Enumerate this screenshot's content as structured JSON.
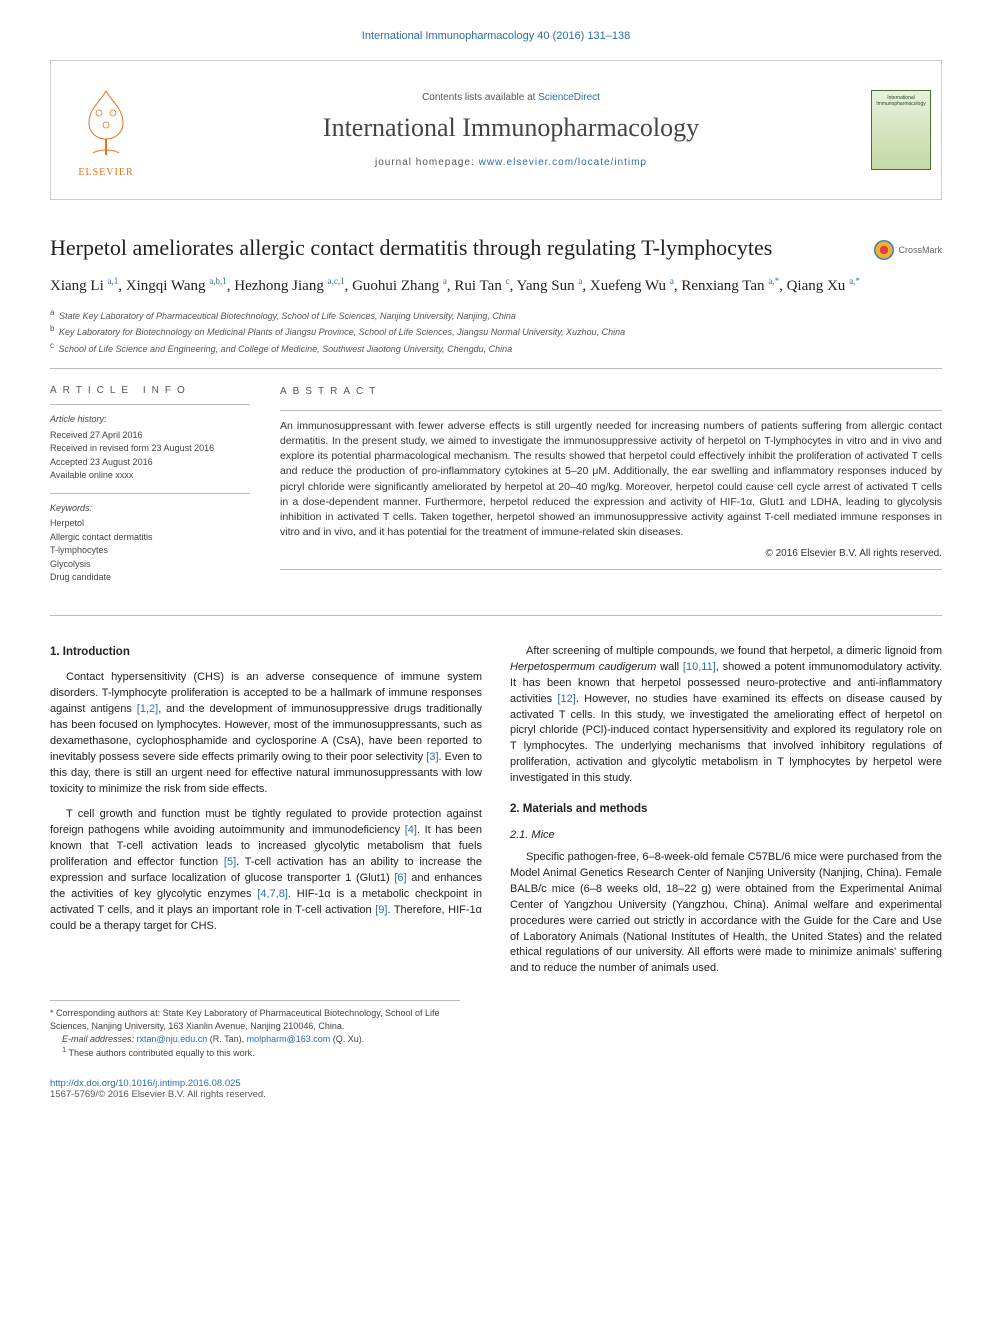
{
  "journal_ref_link": "International Immunopharmacology 40 (2016) 131–138",
  "header": {
    "contents_prefix": "Contents lists available at ",
    "contents_link": "ScienceDirect",
    "journal_name": "International Immunopharmacology",
    "homepage_label": "journal homepage: ",
    "homepage_url": "www.elsevier.com/locate/intimp",
    "publisher_label": "ELSEVIER",
    "thumb_top": "International",
    "thumb_bottom": "Immunopharmacology"
  },
  "crossmark_label": "CrossMark",
  "title": "Herpetol ameliorates allergic contact dermatitis through regulating T-lymphocytes",
  "authors_html": "Xiang Li <sup>a,1</sup>, Xingqi Wang <sup>a,b,1</sup>, Hezhong Jiang <sup>a,c,1</sup>, Guohui Zhang <sup>a</sup>, Rui Tan <sup>c</sup>, Yang Sun <sup>a</sup>, Xuefeng Wu <sup>a</sup>, Renxiang Tan <sup>a,<span class=\"ast\">*</span></sup>, Qiang Xu <sup>a,<span class=\"ast\">*</span></sup>",
  "affiliations": [
    {
      "sup": "a",
      "text": "State Key Laboratory of Pharmaceutical Biotechnology, School of Life Sciences, Nanjing University, Nanjing, China"
    },
    {
      "sup": "b",
      "text": "Key Laboratory for Biotechnology on Medicinal Plants of Jiangsu Province, School of Life Sciences, Jiangsu Normal University, Xuzhou, China"
    },
    {
      "sup": "c",
      "text": "School of Life Science and Engineering, and College of Medicine, Southwest Jiaotong University, Chengdu, China"
    }
  ],
  "article_info": {
    "heading": "ARTICLE INFO",
    "history_label": "Article history:",
    "history": [
      "Received 27 April 2016",
      "Received in revised form 23 August 2016",
      "Accepted 23 August 2016",
      "Available online xxxx"
    ],
    "keywords_label": "Keywords:",
    "keywords": [
      "Herpetol",
      "Allergic contact dermatitis",
      "T-lymphocytes",
      "Glycolysis",
      "Drug candidate"
    ]
  },
  "abstract": {
    "heading": "ABSTRACT",
    "text": "An immunosuppressant with fewer adverse effects is still urgently needed for increasing numbers of patients suffering from allergic contact dermatitis. In the present study, we aimed to investigate the immunosuppressive activity of herpetol on T-lymphocytes in vitro and in vivo and explore its potential pharmacological mechanism. The results showed that herpetol could effectively inhibit the proliferation of activated T cells and reduce the production of pro-inflammatory cytokines at 5–20 μM. Additionally, the ear swelling and inflammatory responses induced by picryl chloride were significantly ameliorated by herpetol at 20–40 mg/kg. Moreover, herpetol could cause cell cycle arrest of activated T cells in a dose-dependent manner. Furthermore, herpetol reduced the expression and activity of HIF-1α, Glut1 and LDHA, leading to glycolysis inhibition in activated T cells. Taken together, herpetol showed an immunosuppressive activity against T-cell mediated immune responses in vitro and in vivo, and it has potential for the treatment of immune-related skin diseases.",
    "copyright": "© 2016 Elsevier B.V. All rights reserved."
  },
  "sections": {
    "intro_h": "1. Introduction",
    "intro_p1": "Contact hypersensitivity (CHS) is an adverse consequence of immune system disorders. T-lymphocyte proliferation is accepted to be a hallmark of immune responses against antigens <span class=\"cite\">[1,2]</span>, and the development of immunosuppressive drugs traditionally has been focused on lymphocytes. However, most of the immunosuppressants, such as dexamethasone, cyclophosphamide and cyclosporine A (CsA), have been reported to inevitably possess severe side effects primarily owing to their poor selectivity <span class=\"cite\">[3]</span>. Even to this day, there is still an urgent need for effective natural immunosuppressants with low toxicity to minimize the risk from side effects.",
    "intro_p2": "T cell growth and function must be tightly regulated to provide protection against foreign pathogens while avoiding autoimmunity and immunodeficiency <span class=\"cite\">[4]</span>. It has been known that T-cell activation leads to increased glycolytic metabolism that fuels proliferation and effector function <span class=\"cite\">[5]</span>. T-cell activation has an ability to increase the expression and surface localization of glucose transporter 1 (Glut1) <span class=\"cite\">[6]</span> and enhances the activities of key glycolytic enzymes <span class=\"cite\">[4,7,8]</span>. HIF-1α is a metabolic checkpoint in activated T cells, and it plays an important role in T-cell activation <span class=\"cite\">[9]</span>. Therefore, HIF-1α could be a therapy target for CHS.",
    "intro_p3": "After screening of multiple compounds, we found that herpetol, a dimeric lignoid from <i>Herpetospermum caudigerum</i> wall <span class=\"cite\">[10,11]</span>, showed a potent immunomodulatory activity. It has been known that herpetol possessed neuro-protective and anti-inflammatory activities <span class=\"cite\">[12]</span>. However, no studies have examined its effects on disease caused by activated T cells. In this study, we investigated the ameliorating effect of herpetol on picryl chloride (PCl)-induced contact hypersensitivity and explored its regulatory role on T lymphocytes. The underlying mechanisms that involved inhibitory regulations of proliferation, activation and glycolytic metabolism in T lymphocytes by herpetol were investigated in this study.",
    "mm_h": "2. Materials and methods",
    "mice_h": "2.1. Mice",
    "mice_p": "Specific pathogen-free, 6–8-week-old female C57BL/6 mice were purchased from the Model Animal Genetics Research Center of Nanjing University (Nanjing, China). Female BALB/c mice (6–8 weeks old, 18–22 g) were obtained from the Experimental Animal Center of Yangzhou University (Yangzhou, China). Animal welfare and experimental procedures were carried out strictly in accordance with the Guide for the Care and Use of Laboratory Animals (National Institutes of Health, the United States) and the related ethical regulations of our university. All efforts were made to minimize animals' suffering and to reduce the number of animals used."
  },
  "footnotes": {
    "corr": "* Corresponding authors at: State Key Laboratory of Pharmaceutical Biotechnology, School of Life Sciences, Nanjing University, 163 Xianlin Avenue, Nanjing 210046, China.",
    "emails_label": "E-mail addresses:",
    "email1": "rxtan@nju.edu.cn",
    "email1_who": "(R. Tan),",
    "email2": "molpharm@163.com",
    "email2_who": "(Q. Xu).",
    "contrib": "These authors contributed equally to this work.",
    "contrib_sup": "1"
  },
  "bottom": {
    "doi": "http://dx.doi.org/10.1016/j.intimp.2016.08.025",
    "issn_line": "1567-5769/© 2016 Elsevier B.V. All rights reserved."
  },
  "colors": {
    "link": "#2e6da4",
    "text": "#333333",
    "rule": "#bbbbbb",
    "elsevier": "#e9711c"
  }
}
